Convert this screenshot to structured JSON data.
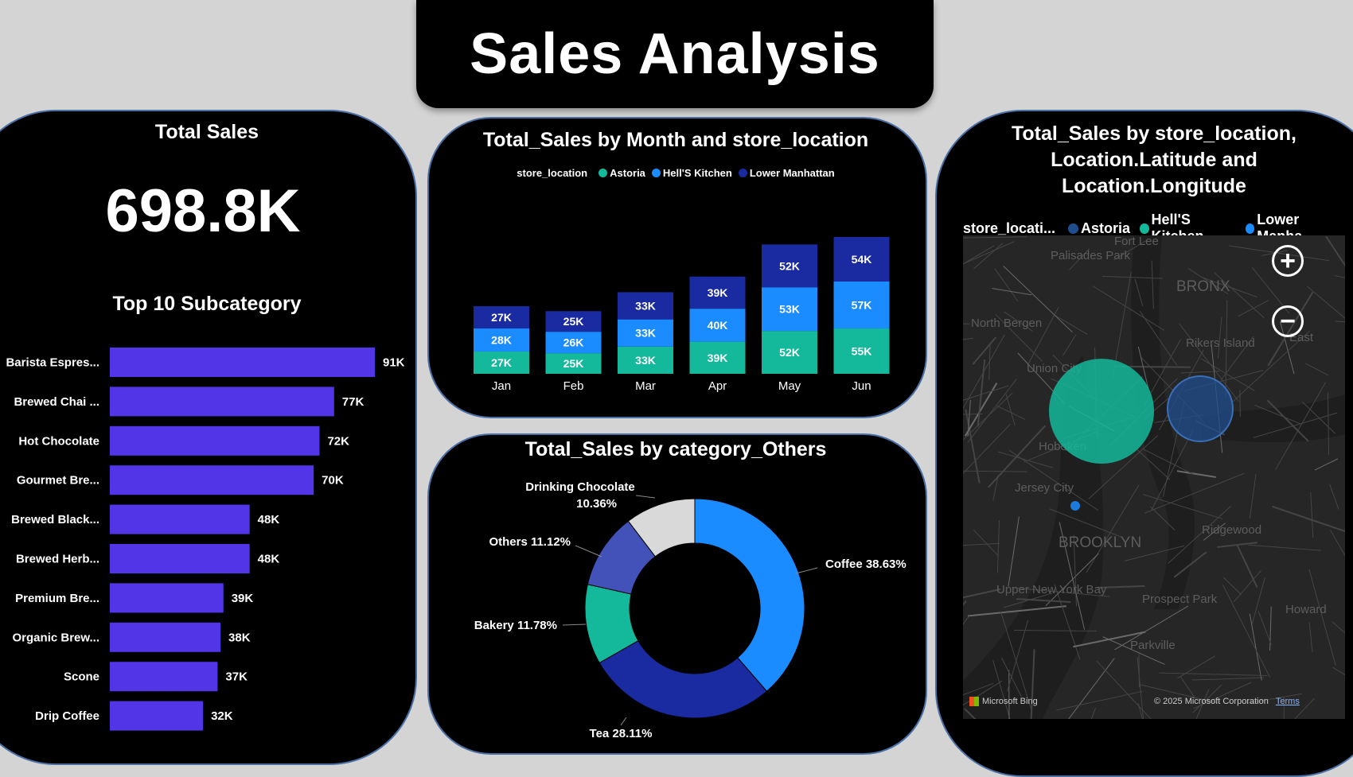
{
  "title": "Sales Analysis",
  "kpi": {
    "label": "Total Sales",
    "value": "698.8K"
  },
  "chart_data": [
    {
      "type": "bar",
      "orientation": "horizontal",
      "title": "Top 10 Subcategory",
      "categories": [
        "Barista Espres...",
        "Brewed Chai ...",
        "Hot Chocolate",
        "Gourmet Bre...",
        "Brewed Black...",
        "Brewed Herb...",
        "Premium Bre...",
        "Organic Brew...",
        "Scone",
        "Drip Coffee"
      ],
      "values": [
        91,
        77,
        72,
        70,
        48,
        48,
        39,
        38,
        37,
        32
      ],
      "labels": [
        "91K",
        "77K",
        "72K",
        "70K",
        "48K",
        "48K",
        "39K",
        "38K",
        "37K",
        "32K"
      ],
      "color": "#5135e6"
    },
    {
      "type": "bar",
      "stacked": true,
      "title": "Total_Sales by Month and store_location",
      "legend_title": "store_location",
      "legend_position": "top",
      "categories": [
        "Jan",
        "Feb",
        "Mar",
        "Apr",
        "May",
        "Jun"
      ],
      "series": [
        {
          "name": "Astoria",
          "color": "#14b89a",
          "values": [
            27,
            25,
            33,
            39,
            52,
            55
          ],
          "labels": [
            "27K",
            "25K",
            "33K",
            "39K",
            "52K",
            "55K"
          ]
        },
        {
          "name": "Hell'S Kitchen",
          "color": "#1a8cff",
          "values": [
            28,
            26,
            33,
            40,
            53,
            57
          ],
          "labels": [
            "28K",
            "26K",
            "33K",
            "40K",
            "53K",
            "57K"
          ]
        },
        {
          "name": "Lower Manhattan",
          "color": "#1a2aa0",
          "values": [
            27,
            25,
            33,
            39,
            52,
            54
          ],
          "labels": [
            "27K",
            "25K",
            "33K",
            "39K",
            "52K",
            "54K"
          ]
        }
      ]
    },
    {
      "type": "pie",
      "donut": true,
      "title": "Total_Sales by category_Others",
      "slices": [
        {
          "name": "Coffee",
          "value": 38.63,
          "label": "Coffee 38.63%",
          "color": "#1a8cff"
        },
        {
          "name": "Tea",
          "value": 28.11,
          "label": "Tea 28.11%",
          "color": "#1a2aa0"
        },
        {
          "name": "Bakery",
          "value": 11.78,
          "label": "Bakery 11.78%",
          "color": "#14b89a"
        },
        {
          "name": "Others",
          "value": 11.12,
          "label": "Others 11.12%",
          "color": "#4352b8"
        },
        {
          "name": "Drinking Chocolate",
          "value": 10.36,
          "label_line1": "Drinking Chocolate",
          "label_line2": "10.36%",
          "color": "#d9d9d9"
        }
      ]
    }
  ],
  "map": {
    "title_lines": [
      "Total_Sales by store_location,",
      "Location.Latitude and",
      "Location.Longitude"
    ],
    "legend_title": "store_locati...",
    "legend": [
      {
        "name": "Astoria",
        "color": "#1f4e8f"
      },
      {
        "name": "Hell'S Kitchen",
        "color": "#14b89a"
      },
      {
        "name": "Lower Manha...",
        "color": "#1a8cff"
      }
    ],
    "place_labels": [
      "Fort Lee",
      "Palisades Park",
      "BRONX",
      "North Bergen",
      "Union City",
      "Hoboken",
      "Jersey City",
      "BROOKLYN",
      "Upper New York Bay",
      "Rikers Island",
      "East",
      "Ridgewood",
      "Prospect Park",
      "Parkville",
      "Howard"
    ],
    "bubbles": [
      {
        "store": "Hell'S Kitchen",
        "color": "#14b89a"
      },
      {
        "store": "Astoria",
        "color": "#1f4e8f"
      },
      {
        "store": "Lower Manhattan",
        "color": "#1a8cff"
      }
    ],
    "zoom_in": "+",
    "zoom_out": "−",
    "attribution_left": "Microsoft Bing",
    "attribution_right": "© 2025 Microsoft Corporation",
    "terms": "Terms"
  }
}
